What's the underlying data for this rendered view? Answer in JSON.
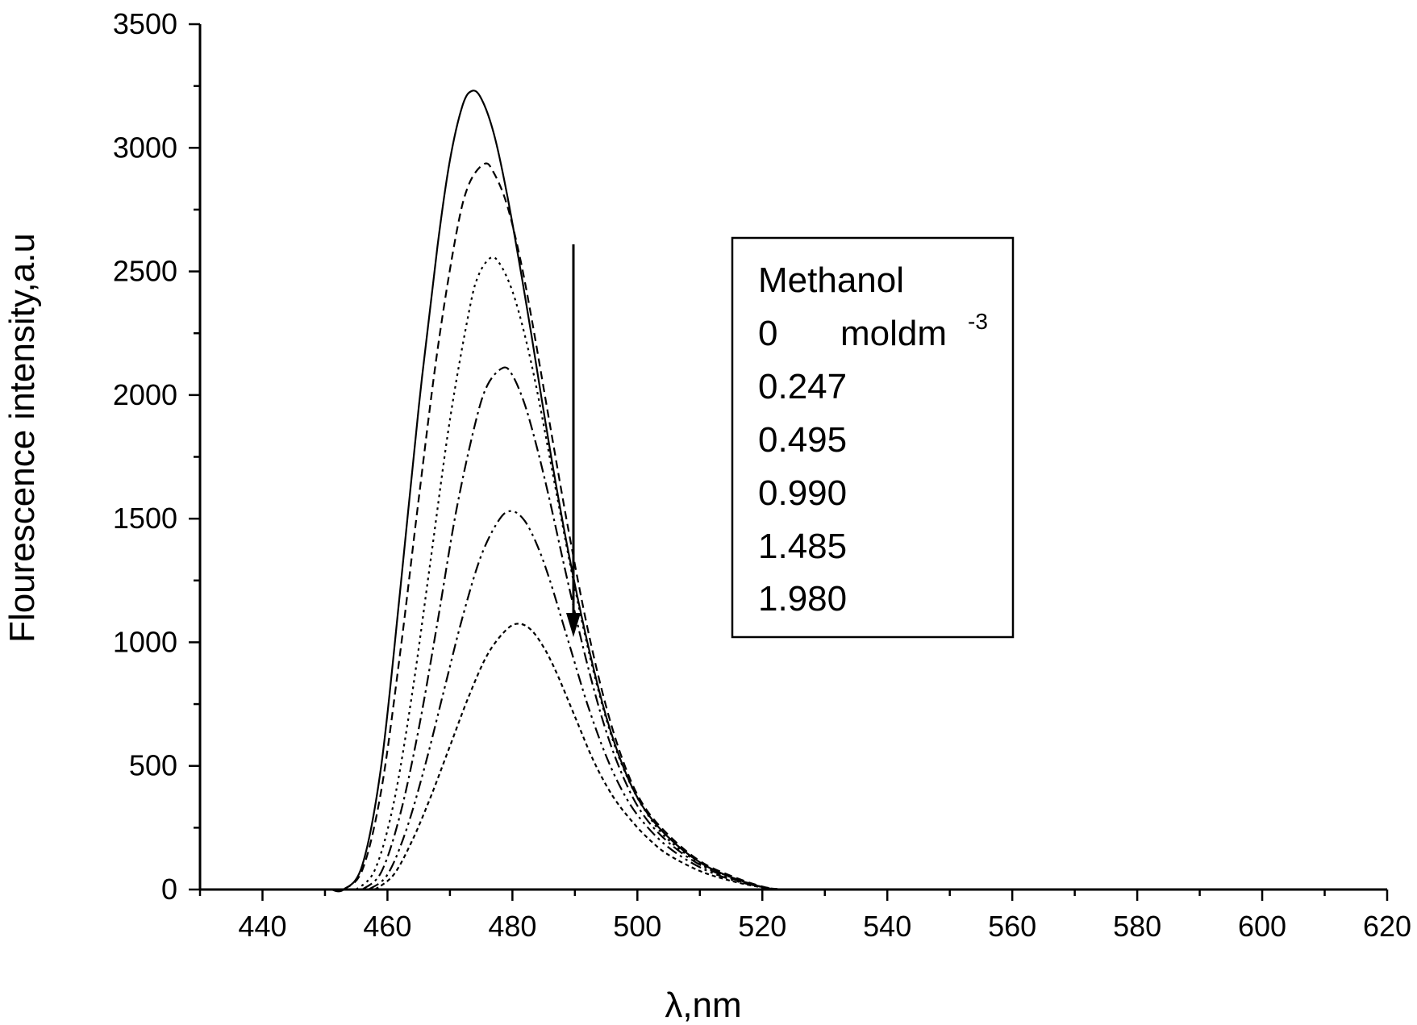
{
  "chart_data": {
    "type": "line",
    "title": "",
    "xlabel": "λ,nm",
    "ylabel": "Flourescence intensity,a.u",
    "xlim": [
      430,
      620
    ],
    "ylim": [
      0,
      3500
    ],
    "x_ticks": [
      440,
      460,
      480,
      500,
      520,
      540,
      560,
      580,
      600,
      620
    ],
    "y_ticks": [
      0,
      500,
      1000,
      1500,
      2000,
      2500,
      3000,
      3500
    ],
    "grid": false,
    "legend_position": "upper-right",
    "legend": {
      "title": "Methanol",
      "unit_text": "moldm",
      "unit_exponent": "-3",
      "entries": [
        "0",
        "0.247",
        "0.495",
        "0.990",
        "1.485",
        "1.980"
      ]
    },
    "annotation": "downward arrow indicating decreasing intensity with increasing methanol concentration",
    "series": [
      {
        "name": "0",
        "dash": "solid",
        "x": [
          451,
          453,
          456,
          459,
          462,
          465,
          468,
          470,
          472,
          473.5,
          475,
          477,
          479,
          481,
          483,
          486,
          489,
          492,
          495,
          498,
          501,
          505,
          510,
          515,
          520,
          523,
          530,
          560,
          600
        ],
        "y": [
          0,
          0,
          100,
          500,
          1200,
          1950,
          2600,
          2950,
          3170,
          3230,
          3200,
          3060,
          2830,
          2550,
          2250,
          1780,
          1360,
          1000,
          700,
          480,
          330,
          210,
          110,
          50,
          10,
          0,
          0,
          0,
          0
        ]
      },
      {
        "name": "0.247",
        "dash": "10,6",
        "x": [
          453,
          456,
          459,
          462,
          465,
          468,
          471,
          473,
          475.5,
          477,
          479,
          481,
          483,
          486,
          489,
          492,
          495,
          498,
          501,
          505,
          510,
          515,
          520,
          523
        ],
        "y": [
          0,
          80,
          400,
          950,
          1580,
          2180,
          2650,
          2850,
          2935,
          2900,
          2780,
          2580,
          2320,
          1880,
          1450,
          1060,
          740,
          500,
          340,
          220,
          115,
          55,
          12,
          0
        ]
      },
      {
        "name": "0.495",
        "dash": "3,5",
        "x": [
          455,
          458,
          461,
          464,
          467,
          470,
          473,
          474.5,
          476.5,
          478,
          480,
          482,
          484,
          487,
          490,
          493,
          496,
          499,
          502,
          505,
          510,
          515,
          520,
          523
        ],
        "y": [
          0,
          80,
          350,
          800,
          1350,
          1900,
          2330,
          2480,
          2555,
          2530,
          2420,
          2240,
          2010,
          1610,
          1220,
          880,
          610,
          420,
          290,
          200,
          105,
          50,
          10,
          0
        ]
      },
      {
        "name": "0.990",
        "dash": "14,5,3,5",
        "x": [
          456,
          459,
          462,
          465,
          468,
          471,
          474,
          476,
          478.5,
          480,
          482,
          484,
          486,
          489,
          492,
          495,
          498,
          501,
          505,
          510,
          515,
          520,
          523
        ],
        "y": [
          0,
          70,
          300,
          650,
          1080,
          1530,
          1880,
          2040,
          2110,
          2080,
          1960,
          1780,
          1570,
          1230,
          910,
          640,
          440,
          300,
          190,
          100,
          45,
          10,
          0
        ]
      },
      {
        "name": "1.485",
        "dash": "14,5,3,5,3,5",
        "x": [
          457,
          460,
          463,
          466,
          469,
          472,
          475,
          478,
          480,
          482,
          484,
          486,
          489,
          492,
          495,
          498,
          501,
          505,
          510,
          515,
          520,
          523
        ],
        "y": [
          0,
          60,
          240,
          500,
          800,
          1100,
          1350,
          1500,
          1530,
          1490,
          1390,
          1250,
          1000,
          750,
          540,
          380,
          270,
          170,
          90,
          40,
          10,
          0
        ]
      },
      {
        "name": "1.980",
        "dash": "5,4",
        "x": [
          458,
          461,
          464,
          467,
          470,
          473,
          476,
          479,
          481,
          483,
          485,
          487,
          490,
          493,
          496,
          499,
          502,
          505,
          510,
          515,
          520,
          523
        ],
        "y": [
          0,
          60,
          200,
          380,
          580,
          780,
          950,
          1050,
          1075,
          1050,
          980,
          880,
          700,
          520,
          380,
          280,
          200,
          140,
          75,
          35,
          8,
          0
        ]
      }
    ]
  }
}
